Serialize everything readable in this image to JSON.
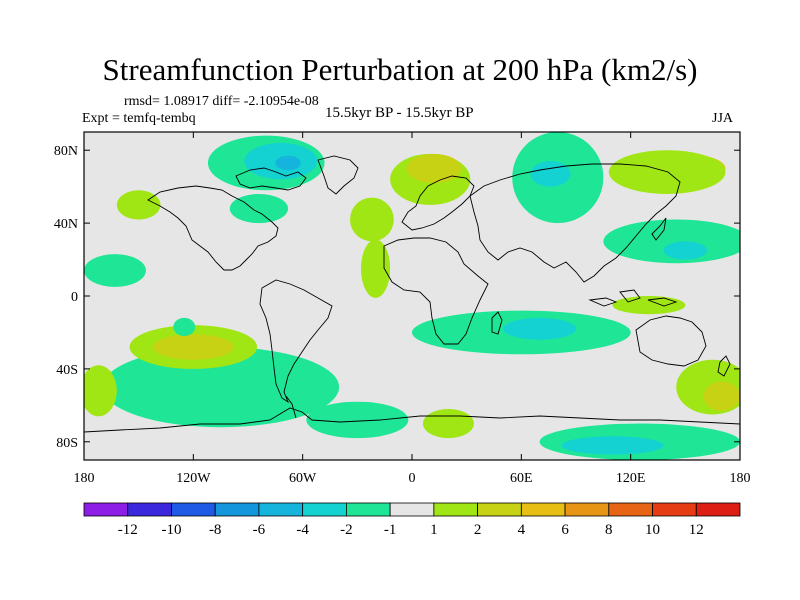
{
  "chart_data": {
    "type": "filled-contour-map",
    "title": "Streamfunction Perturbation at 200 hPa (km2/s)",
    "subtitle_left": "rmsd= 1.08917 diff= -2.10954e-08",
    "experiment": "Expt = temfq-tembq",
    "period": "15.5kyr BP - 15.5kyr BP",
    "season": "JJA",
    "x_ticks": [
      "180",
      "120W",
      "60W",
      "0",
      "60E",
      "120E",
      "180"
    ],
    "x_tick_values": [
      -180,
      -120,
      -60,
      0,
      60,
      120,
      180
    ],
    "y_ticks": [
      "80N",
      "40N",
      "0",
      "40S",
      "80S"
    ],
    "y_tick_values": [
      80,
      40,
      0,
      -40,
      -80
    ],
    "xlim": [
      -180,
      180
    ],
    "ylim": [
      -90,
      90
    ],
    "colorbar": {
      "labels": [
        "-12",
        "-10",
        "-8",
        "-6",
        "-4",
        "-2",
        "-1",
        "1",
        "2",
        "4",
        "6",
        "8",
        "10",
        "12"
      ],
      "colors": [
        "#8c1ee6",
        "#3c28dc",
        "#1e5ae6",
        "#1496dc",
        "#14b4dc",
        "#14d2d2",
        "#1ee696",
        "#e6e6e6",
        "#a0e614",
        "#c8d214",
        "#e6be14",
        "#e69614",
        "#e66414",
        "#e63c14",
        "#dc1e14"
      ]
    },
    "regions": [
      {
        "value": 2,
        "color": "#a0e614",
        "lon": -150,
        "lat": 50,
        "rlon": 12,
        "rlat": 8
      },
      {
        "value": 1.5,
        "color": "#1ee696",
        "lon": -163,
        "lat": 14,
        "rlon": 17,
        "rlat": 9
      },
      {
        "value": -1.5,
        "color": "#1ee696",
        "lon": -80,
        "lat": 73,
        "rlon": 32,
        "rlat": 15
      },
      {
        "value": -2.5,
        "color": "#14d2d2",
        "lon": -72,
        "lat": 74,
        "rlon": 20,
        "rlat": 10
      },
      {
        "value": -4,
        "color": "#14b4dc",
        "lon": -68,
        "lat": 73,
        "rlon": 7,
        "rlat": 4
      },
      {
        "value": -1.5,
        "color": "#1ee696",
        "lon": -84,
        "lat": 48,
        "rlon": 16,
        "rlat": 8
      },
      {
        "value": 2,
        "color": "#a0e614",
        "lon": 10,
        "lat": 64,
        "rlon": 22,
        "rlat": 14
      },
      {
        "value": 3,
        "color": "#c8d214",
        "lon": 12,
        "lat": 70,
        "rlon": 15,
        "rlat": 8
      },
      {
        "value": 2,
        "color": "#a0e614",
        "lon": -22,
        "lat": 42,
        "rlon": 12,
        "rlat": 12
      },
      {
        "value": 2,
        "color": "#a0e614",
        "lon": -20,
        "lat": 15,
        "rlon": 8,
        "rlat": 16
      },
      {
        "value": -1.5,
        "color": "#1ee696",
        "lon": 80,
        "lat": 65,
        "rlon": 25,
        "rlat": 25
      },
      {
        "value": -2.5,
        "color": "#14d2d2",
        "lon": 76,
        "lat": 67,
        "rlon": 11,
        "rlat": 7
      },
      {
        "value": 3,
        "color": "#c8d214",
        "lon": 150,
        "lat": 70,
        "rlon": 22,
        "rlat": 8
      },
      {
        "value": 2,
        "color": "#a0e614",
        "lon": 140,
        "lat": 68,
        "rlon": 32,
        "rlat": 12
      },
      {
        "value": -1.5,
        "color": "#1ee696",
        "lon": 145,
        "lat": 30,
        "rlon": 40,
        "rlat": 12
      },
      {
        "value": -2.5,
        "color": "#14d2d2",
        "lon": 150,
        "lat": 25,
        "rlon": 12,
        "rlat": 5
      },
      {
        "value": -1.5,
        "color": "#1ee696",
        "lon": 60,
        "lat": -20,
        "rlon": 60,
        "rlat": 12
      },
      {
        "value": -3,
        "color": "#14d2d2",
        "lon": 70,
        "lat": -18,
        "rlon": 20,
        "rlat": 6
      },
      {
        "value": -1.5,
        "color": "#1ee696",
        "lon": -105,
        "lat": -50,
        "rlon": 65,
        "rlat": 22
      },
      {
        "value": 2,
        "color": "#a0e614",
        "lon": -120,
        "lat": -28,
        "rlon": 35,
        "rlat": 12
      },
      {
        "value": 3,
        "color": "#c8d214",
        "lon": -120,
        "lat": -28,
        "rlon": 22,
        "rlat": 7
      },
      {
        "value": -1.5,
        "color": "#1ee696",
        "lon": -30,
        "lat": -68,
        "rlon": 28,
        "rlat": 10
      },
      {
        "value": 2,
        "color": "#a0e614",
        "lon": 20,
        "lat": -70,
        "rlon": 14,
        "rlat": 8
      },
      {
        "value": -1.5,
        "color": "#1ee696",
        "lon": 125,
        "lat": -80,
        "rlon": 55,
        "rlat": 10
      },
      {
        "value": -3,
        "color": "#14d2d2",
        "lon": 110,
        "lat": -82,
        "rlon": 28,
        "rlat": 5
      },
      {
        "value": 2,
        "color": "#a0e614",
        "lon": 130,
        "lat": -5,
        "rlon": 20,
        "rlat": 5
      },
      {
        "value": 2,
        "color": "#a0e614",
        "lon": 165,
        "lat": -50,
        "rlon": 20,
        "rlat": 15
      },
      {
        "value": 3,
        "color": "#c8d214",
        "lon": 170,
        "lat": -55,
        "rlon": 10,
        "rlat": 8
      },
      {
        "value": 2,
        "color": "#a0e614",
        "lon": -172,
        "lat": -52,
        "rlon": 10,
        "rlat": 14
      },
      {
        "value": -1.5,
        "color": "#1ee696",
        "lon": -125,
        "lat": -17,
        "rlon": 6,
        "rlat": 5
      }
    ]
  }
}
